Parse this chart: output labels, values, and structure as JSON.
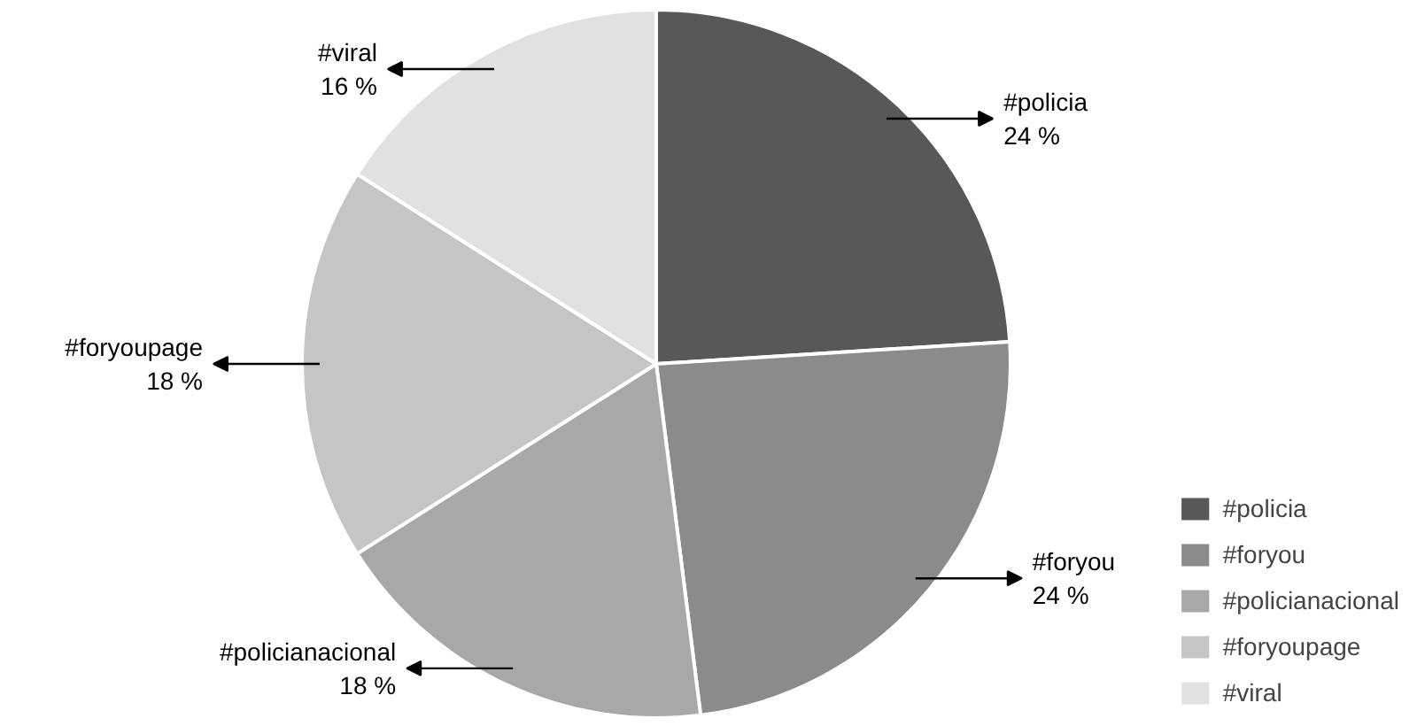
{
  "chart_data": {
    "type": "pie",
    "categories": [
      "#policia",
      "#foryou",
      "#policianacional",
      "#foryoupage",
      "#viral"
    ],
    "values": [
      24,
      24,
      18,
      18,
      16
    ],
    "colors": [
      "#58585a",
      "#8a8b8d",
      "#a7a8aa",
      "#c4c5c7",
      "#e0e1e2"
    ],
    "value_labels": [
      "24 %",
      "24 %",
      "18 %",
      "18 %",
      "16 %"
    ],
    "legend": "bottom right"
  }
}
